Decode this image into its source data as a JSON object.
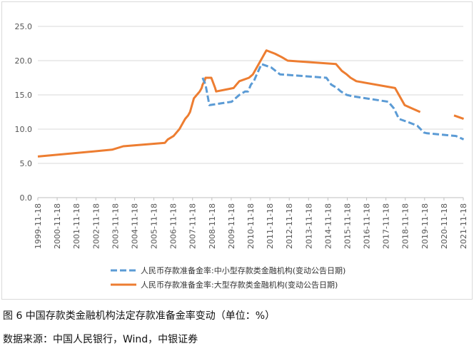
{
  "caption": "图 6 中国存款类金融机构法定存款准备金率变动（单位：%）",
  "source": "数据来源：中国人民银行，Wind，中银证券",
  "chart_data": {
    "type": "line",
    "title": "",
    "xlabel": "",
    "ylabel": "",
    "ylim": [
      0,
      25
    ],
    "yticks": [
      "0.0",
      "5.0",
      "10.0",
      "15.0",
      "20.0",
      "25.0"
    ],
    "xtick_labels": [
      "1999-11-18",
      "2000-11-18",
      "2001-11-18",
      "2002-11-18",
      "2003-11-18",
      "2004-11-18",
      "2005-11-18",
      "2006-11-18",
      "2007-11-18",
      "2008-11-18",
      "2009-11-18",
      "2010-11-18",
      "2011-11-18",
      "2012-11-18",
      "2013-11-18",
      "2014-11-18",
      "2015-11-18",
      "2016-11-18",
      "2017-11-18",
      "2018-11-18",
      "2019-11-18",
      "2020-11-18",
      "2021-11-18"
    ],
    "grid": "horizontal",
    "legend_position": "bottom",
    "series": [
      {
        "name": "人民币存款准备金率:中小型存款类金融机构(变动公告日期)",
        "color": "#5b9bd5",
        "style": "dashed",
        "points": [
          [
            2008.4,
            17.5
          ],
          [
            2008.55,
            16.5
          ],
          [
            2008.75,
            13.5
          ],
          [
            2009.9,
            14.0
          ],
          [
            2010.1,
            14.5
          ],
          [
            2010.3,
            15.0
          ],
          [
            2010.6,
            15.5
          ],
          [
            2010.75,
            15.5
          ],
          [
            2010.9,
            16.5
          ],
          [
            2011.05,
            17.0
          ],
          [
            2011.2,
            18.0
          ],
          [
            2011.45,
            19.5
          ],
          [
            2011.95,
            19.0
          ],
          [
            2012.4,
            18.0
          ],
          [
            2014.8,
            17.5
          ],
          [
            2015.05,
            16.5
          ],
          [
            2015.35,
            16.0
          ],
          [
            2015.55,
            15.5
          ],
          [
            2015.85,
            15.0
          ],
          [
            2016.15,
            14.8
          ],
          [
            2018.0,
            14.0
          ],
          [
            2018.3,
            13.0
          ],
          [
            2018.55,
            11.5
          ],
          [
            2019.05,
            11.0
          ],
          [
            2019.5,
            10.5
          ],
          [
            2019.85,
            9.5
          ],
          [
            2020.0,
            9.4
          ],
          [
            2021.5,
            9.0
          ],
          [
            2021.9,
            8.5
          ]
        ]
      },
      {
        "name": "人民币存款准备金率:大型存款类金融机构(变动公告日期)",
        "color": "#ed7d31",
        "style": "solid",
        "points": [
          [
            1999.88,
            6.0
          ],
          [
            2003.72,
            7.0
          ],
          [
            2004.3,
            7.5
          ],
          [
            2006.45,
            8.0
          ],
          [
            2006.6,
            8.5
          ],
          [
            2006.9,
            9.0
          ],
          [
            2007.05,
            9.5
          ],
          [
            2007.2,
            10.0
          ],
          [
            2007.3,
            10.5
          ],
          [
            2007.4,
            11.0
          ],
          [
            2007.5,
            11.5
          ],
          [
            2007.65,
            12.0
          ],
          [
            2007.75,
            12.5
          ],
          [
            2007.85,
            13.5
          ],
          [
            2007.95,
            14.5
          ],
          [
            2008.1,
            15.0
          ],
          [
            2008.25,
            15.5
          ],
          [
            2008.35,
            16.0
          ],
          [
            2008.4,
            16.5
          ],
          [
            2008.5,
            17.0
          ],
          [
            2008.55,
            17.5
          ],
          [
            2008.85,
            17.5
          ],
          [
            2009.05,
            16.0
          ],
          [
            2009.1,
            15.5
          ],
          [
            2010.0,
            16.0
          ],
          [
            2010.15,
            16.5
          ],
          [
            2010.3,
            17.0
          ],
          [
            2010.8,
            17.5
          ],
          [
            2011.0,
            18.0
          ],
          [
            2011.2,
            19.0
          ],
          [
            2011.4,
            20.0
          ],
          [
            2011.5,
            20.5
          ],
          [
            2011.6,
            21.0
          ],
          [
            2011.7,
            21.5
          ],
          [
            2012.15,
            21.0
          ],
          [
            2012.5,
            20.5
          ],
          [
            2012.8,
            20.0
          ],
          [
            2015.3,
            19.5
          ],
          [
            2015.6,
            18.5
          ],
          [
            2015.85,
            18.0
          ],
          [
            2016.05,
            17.5
          ],
          [
            2016.35,
            17.0
          ],
          [
            2018.35,
            16.0
          ],
          [
            2018.55,
            15.0
          ],
          [
            2018.85,
            13.5
          ],
          [
            2019.25,
            13.0
          ],
          [
            2019.65,
            12.5
          ],
          [
            2019.75,
            null
          ],
          [
            2021.4,
            12.0
          ],
          [
            2021.9,
            11.5
          ]
        ]
      }
    ]
  }
}
